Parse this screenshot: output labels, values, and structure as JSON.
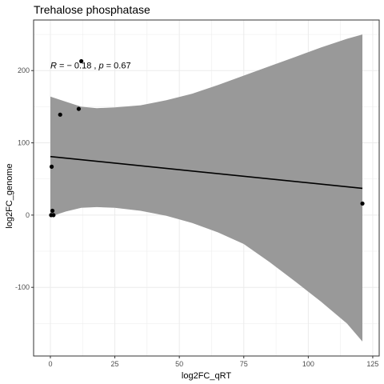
{
  "chart_data": {
    "type": "scatter",
    "title": "Trehalose phosphatase",
    "xlabel": "log2FC_qRT",
    "ylabel": "log2FC_genome",
    "xlim": [
      -6.5,
      127.5
    ],
    "ylim": [
      -195,
      270
    ],
    "x_ticks": [
      0,
      25,
      50,
      75,
      100,
      125
    ],
    "y_ticks": [
      -100,
      0,
      100,
      200
    ],
    "grid": true,
    "annotation": {
      "text_parts": [
        "R",
        " = − 0.18 , ",
        "p",
        " = 0.67"
      ],
      "x": 0,
      "y": 203
    },
    "points": [
      {
        "x": 0.3,
        "y": 0
      },
      {
        "x": 1.2,
        "y": 0
      },
      {
        "x": 0.8,
        "y": 6
      },
      {
        "x": 0.5,
        "y": 67
      },
      {
        "x": 3.8,
        "y": 139
      },
      {
        "x": 11,
        "y": 147
      },
      {
        "x": 12,
        "y": 213
      },
      {
        "x": 121,
        "y": 16
      }
    ],
    "regression": {
      "x": [
        0,
        121
      ],
      "y": [
        81,
        37
      ]
    },
    "confidence_band": {
      "x": [
        0,
        6,
        12,
        18,
        25,
        35,
        45,
        55,
        65,
        75,
        85,
        95,
        105,
        115,
        121
      ],
      "upper": [
        164,
        157,
        150,
        148,
        149,
        152,
        159,
        168,
        180,
        193,
        206,
        219,
        232,
        244,
        250
      ],
      "lower": [
        -2,
        5,
        10,
        11,
        10,
        6,
        -1,
        -11,
        -24,
        -40,
        -65,
        -92,
        -120,
        -150,
        -175
      ]
    },
    "colors": {
      "band": "#999999",
      "line": "#000000",
      "points": "#000000",
      "grid": "#ebebeb",
      "border": "#333333"
    }
  }
}
